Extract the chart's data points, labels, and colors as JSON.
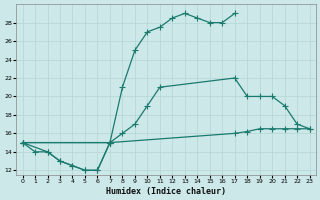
{
  "xlabel": "Humidex (Indice chaleur)",
  "bg_color": "#cce8e8",
  "line_color": "#1a7a6e",
  "grid_color": "#b8d8d8",
  "xlim": [
    -0.5,
    23.5
  ],
  "ylim": [
    11.5,
    30
  ],
  "yticks": [
    12,
    14,
    16,
    18,
    20,
    22,
    24,
    26,
    28
  ],
  "xticks": [
    0,
    1,
    2,
    3,
    4,
    5,
    6,
    7,
    8,
    9,
    10,
    11,
    12,
    13,
    14,
    15,
    16,
    17,
    18,
    19,
    20,
    21,
    22,
    23
  ],
  "line1_x": [
    0,
    1,
    2,
    3,
    4,
    5,
    6,
    7,
    8,
    9,
    10,
    11,
    12,
    13,
    14,
    15,
    16,
    17
  ],
  "line1_y": [
    15,
    14,
    14,
    13,
    12.5,
    12,
    12,
    15,
    21,
    25,
    27,
    27.5,
    28.5,
    29,
    28.5,
    28,
    28,
    29
  ],
  "line2_x": [
    0,
    7,
    8,
    9,
    10,
    11,
    17,
    18,
    19,
    20,
    21,
    22,
    23
  ],
  "line2_y": [
    15,
    15,
    16,
    17,
    19,
    21,
    22,
    20,
    20,
    20,
    19,
    17,
    16.5
  ],
  "line3_x": [
    0,
    7,
    17,
    18,
    19,
    20,
    21,
    22,
    23
  ],
  "line3_y": [
    15,
    15,
    16,
    16.2,
    16.5,
    16.5,
    16.5,
    16.5,
    16.5
  ],
  "line4_x": [
    0,
    2,
    3,
    4,
    5,
    6,
    7
  ],
  "line4_y": [
    15,
    14,
    13,
    12.5,
    12,
    12,
    15
  ]
}
